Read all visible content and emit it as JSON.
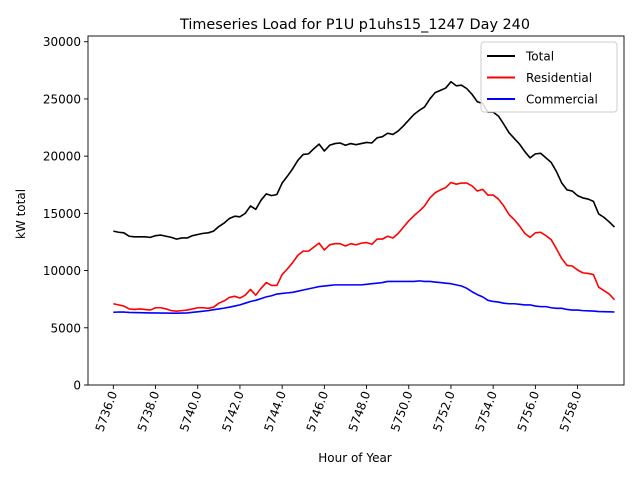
{
  "chart_data": {
    "type": "line",
    "title": "Timeseries Load for P1U p1uhs15_1247  Day 240",
    "xlabel": "Hour of Year",
    "ylabel": "kW total",
    "xlim": [
      5734.8,
      5760.2
    ],
    "ylim": [
      0,
      30500
    ],
    "x_start": 5736.0,
    "x_step": 0.25,
    "xticks": [
      5736.0,
      5738.0,
      5740.0,
      5742.0,
      5744.0,
      5746.0,
      5748.0,
      5750.0,
      5752.0,
      5754.0,
      5756.0,
      5758.0
    ],
    "xtick_labels": [
      "5736.0",
      "5738.0",
      "5740.0",
      "5742.0",
      "5744.0",
      "5746.0",
      "5748.0",
      "5750.0",
      "5752.0",
      "5754.0",
      "5756.0",
      "5758.0"
    ],
    "yticks": [
      0,
      5000,
      10000,
      15000,
      20000,
      25000,
      30000
    ],
    "ytick_labels": [
      "0",
      "5000",
      "10000",
      "15000",
      "20000",
      "25000",
      "30000"
    ],
    "legend_position": "top-right",
    "series": [
      {
        "name": "Total",
        "color": "#000000",
        "values": [
          13450,
          13350,
          13300,
          13000,
          12950,
          12950,
          12950,
          12900,
          13050,
          13100,
          13000,
          12900,
          12750,
          12850,
          12850,
          13050,
          13150,
          13250,
          13300,
          13450,
          13850,
          14150,
          14550,
          14750,
          14700,
          15000,
          15650,
          15350,
          16150,
          16700,
          16550,
          16650,
          17650,
          18250,
          18900,
          19650,
          20150,
          20200,
          20650,
          21050,
          20450,
          20950,
          21100,
          21150,
          20950,
          21100,
          21000,
          21100,
          21200,
          21150,
          21600,
          21700,
          22000,
          21900,
          22200,
          22650,
          23150,
          23650,
          24000,
          24300,
          25000,
          25550,
          25750,
          25950,
          26500,
          26150,
          26200,
          25900,
          25400,
          24750,
          24600,
          23850,
          23850,
          23500,
          22800,
          22050,
          21550,
          21050,
          20400,
          19850,
          20200,
          20250,
          19850,
          19450,
          18650,
          17650,
          17050,
          16950,
          16550,
          16350,
          16250,
          16050,
          14950,
          14650,
          14250,
          13800
        ]
      },
      {
        "name": "Residential",
        "color": "#ff0000",
        "values": [
          7100,
          7000,
          6900,
          6650,
          6600,
          6650,
          6600,
          6550,
          6750,
          6750,
          6650,
          6500,
          6450,
          6500,
          6550,
          6650,
          6750,
          6750,
          6700,
          6800,
          7150,
          7350,
          7650,
          7750,
          7600,
          7850,
          8350,
          7850,
          8450,
          8950,
          8700,
          8700,
          9650,
          10150,
          10700,
          11350,
          11700,
          11700,
          12050,
          12400,
          11800,
          12250,
          12350,
          12350,
          12150,
          12350,
          12250,
          12400,
          12450,
          12300,
          12750,
          12750,
          13000,
          12850,
          13250,
          13800,
          14350,
          14800,
          15200,
          15650,
          16350,
          16800,
          17050,
          17250,
          17700,
          17550,
          17650,
          17650,
          17400,
          16950,
          17100,
          16600,
          16600,
          16250,
          15650,
          14900,
          14450,
          13900,
          13250,
          12900,
          13300,
          13350,
          13050,
          12700,
          11900,
          11050,
          10450,
          10400,
          10050,
          9800,
          9750,
          9650,
          8550,
          8250,
          7950,
          7450
        ]
      },
      {
        "name": "Commercial",
        "color": "#0000ff",
        "values": [
          6350,
          6380,
          6370,
          6340,
          6330,
          6320,
          6310,
          6300,
          6300,
          6290,
          6290,
          6280,
          6280,
          6290,
          6300,
          6350,
          6400,
          6450,
          6500,
          6580,
          6650,
          6720,
          6800,
          6900,
          7000,
          7150,
          7300,
          7400,
          7550,
          7700,
          7800,
          7950,
          8000,
          8050,
          8100,
          8200,
          8300,
          8400,
          8500,
          8600,
          8650,
          8700,
          8750,
          8750,
          8750,
          8750,
          8750,
          8750,
          8800,
          8850,
          8900,
          8950,
          9050,
          9050,
          9050,
          9050,
          9050,
          9050,
          9100,
          9050,
          9050,
          9000,
          8950,
          8900,
          8850,
          8750,
          8650,
          8450,
          8150,
          7900,
          7700,
          7400,
          7300,
          7250,
          7150,
          7100,
          7100,
          7050,
          7000,
          7000,
          6900,
          6850,
          6850,
          6750,
          6700,
          6700,
          6600,
          6550,
          6550,
          6500,
          6480,
          6460,
          6420,
          6410,
          6400,
          6380
        ]
      }
    ]
  }
}
